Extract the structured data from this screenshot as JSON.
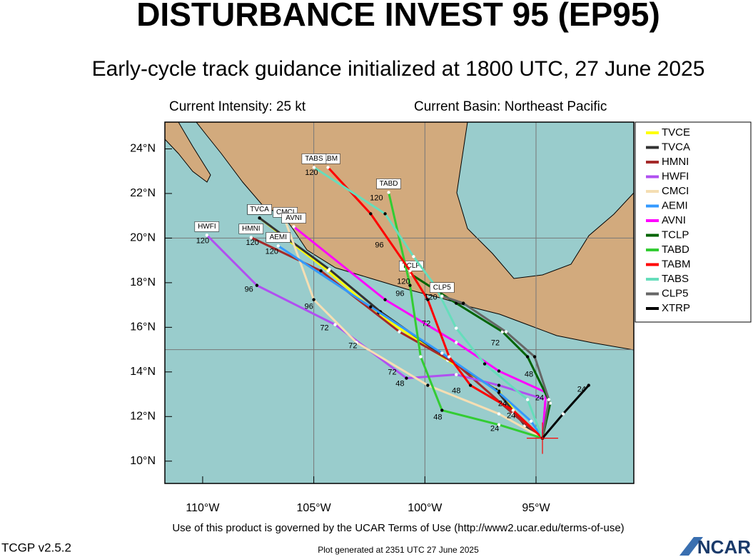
{
  "header": {
    "title": "DISTURBANCE INVEST 95 (EP95)",
    "subtitle": "Early-cycle track guidance initialized at 1800 UTC, 27 June 2025",
    "intensity": "Current Intensity: 25 kt",
    "basin": "Current Basin: Northeast Pacific"
  },
  "map": {
    "xlim": [
      -111.7,
      -90.6
    ],
    "ylim": [
      9.0,
      25.2
    ],
    "xticks": [
      {
        "value": -110,
        "label": "110°W"
      },
      {
        "value": -105,
        "label": "105°W"
      },
      {
        "value": -100,
        "label": "100°W"
      },
      {
        "value": -95,
        "label": "95°W"
      }
    ],
    "yticks": [
      {
        "value": 10,
        "label": "10°N"
      },
      {
        "value": 12,
        "label": "12°N"
      },
      {
        "value": 14,
        "label": "14°N"
      },
      {
        "value": 16,
        "label": "16°N"
      },
      {
        "value": 18,
        "label": "18°N"
      },
      {
        "value": 20,
        "label": "20°N"
      },
      {
        "value": 22,
        "label": "22°N"
      },
      {
        "value": 24,
        "label": "24°N"
      }
    ],
    "grid_lon": [
      -105,
      -100,
      -95
    ],
    "grid_lat": [
      15,
      20
    ],
    "current_position": {
      "lon": -94.71,
      "lat": 11.03
    },
    "tracks": [
      {
        "name": "TVCE",
        "color": "#ffff00",
        "lon": [
          -94.71,
          -95.38,
          -96.67,
          -98.97,
          -102.12,
          -104.36,
          -107.44
        ],
        "lat": [
          11.03,
          11.47,
          13.14,
          14.52,
          16.6,
          18.53,
          20.9
        ]
      },
      {
        "name": "TVCA",
        "color": "#333333",
        "lon": [
          -94.71,
          -95.5,
          -96.8,
          -99.0,
          -102.0,
          -104.3,
          -107.44
        ],
        "lat": [
          11.03,
          11.6,
          13.2,
          14.6,
          16.7,
          18.6,
          20.9
        ]
      },
      {
        "name": "HMNI",
        "color": "#a52a2a",
        "lon": [
          -94.71,
          -96.03,
          -98.59,
          -101.15,
          -104.68,
          -107.82
        ],
        "lat": [
          11.03,
          12.12,
          14.36,
          15.8,
          18.53,
          20.03
        ]
      },
      {
        "name": "HWFI",
        "color": "#b050f0",
        "lon": [
          -94.71,
          -94.58,
          -96.67,
          -98.59,
          -100.83,
          -104.04,
          -107.56,
          -109.81
        ],
        "lat": [
          11.03,
          12.76,
          13.4,
          13.88,
          13.72,
          16.12,
          17.88,
          20.13
        ]
      },
      {
        "name": "CMCI",
        "color": "#f5deb3",
        "lon": [
          -94.71,
          -96.67,
          -99.87,
          -103.08,
          -105.0,
          -106.28
        ],
        "lat": [
          11.03,
          12.12,
          13.4,
          15.32,
          17.24,
          20.77
        ]
      },
      {
        "name": "AEMI",
        "color": "#3399ff",
        "lon": [
          -94.71,
          -95.22,
          -96.67,
          -99.23,
          -102.44,
          -106.6
        ],
        "lat": [
          11.03,
          11.79,
          13.08,
          14.84,
          16.92,
          19.65
        ]
      },
      {
        "name": "AVNI",
        "color": "#ff00ff",
        "lon": [
          -94.71,
          -94.55,
          -96.67,
          -98.59,
          -101.79,
          -105.9
        ],
        "lat": [
          11.03,
          13.08,
          14.04,
          15.32,
          17.24,
          20.51
        ]
      },
      {
        "name": "TCLP",
        "color": "#006400",
        "lon": [
          -94.71,
          -94.36,
          -95.38,
          -96.51,
          -98.59,
          -100.61
        ],
        "lat": [
          11.03,
          12.6,
          14.68,
          15.8,
          17.08,
          18.37
        ]
      },
      {
        "name": "TABD",
        "color": "#33cc33",
        "lon": [
          -94.71,
          -96.67,
          -99.23,
          -100.19,
          -100.67,
          -101.63
        ],
        "lat": [
          11.03,
          11.63,
          12.28,
          14.68,
          17.88,
          22.05
        ]
      },
      {
        "name": "TABM",
        "color": "#ff0000",
        "lon": [
          -94.71,
          -96.03,
          -97.95,
          -98.91,
          -99.87,
          -100.67,
          -102.44,
          -104.36
        ],
        "lat": [
          11.03,
          12.28,
          13.4,
          14.68,
          17.24,
          18.53,
          21.09,
          23.17
        ]
      },
      {
        "name": "TABS",
        "color": "#66ddbb",
        "lon": [
          -94.71,
          -95.38,
          -97.31,
          -98.59,
          -99.55,
          -100.51,
          -101.79,
          -104.99
        ],
        "lat": [
          11.03,
          12.76,
          14.36,
          15.96,
          17.88,
          19.17,
          21.09,
          23.17
        ]
      },
      {
        "name": "CLP5",
        "color": "#666666",
        "lon": [
          -94.71,
          -94.42,
          -95.06,
          -96.35,
          -98.27,
          -99.23
        ],
        "lat": [
          11.03,
          12.76,
          14.68,
          15.8,
          17.08,
          17.4
        ]
      },
      {
        "name": "XTRP",
        "color": "#000000",
        "lon": [
          -94.71,
          -93.78,
          -92.63
        ],
        "lat": [
          11.03,
          12.12,
          13.4
        ]
      }
    ],
    "hour_labels": [
      {
        "text": "120",
        "lon": -105.1,
        "lat": 22.92
      },
      {
        "text": "120",
        "lon": -102.18,
        "lat": 21.79
      },
      {
        "text": "120",
        "lon": -107.76,
        "lat": 19.78
      },
      {
        "text": "120",
        "lon": -106.89,
        "lat": 19.39
      },
      {
        "text": "120",
        "lon": -110.0,
        "lat": 19.87
      },
      {
        "text": "120",
        "lon": -100.96,
        "lat": 18.04
      },
      {
        "text": "120",
        "lon": -99.74,
        "lat": 17.34
      },
      {
        "text": "96",
        "lon": -107.92,
        "lat": 17.69
      },
      {
        "text": "96",
        "lon": -105.22,
        "lat": 16.92
      },
      {
        "text": "96",
        "lon": -101.12,
        "lat": 17.5
      },
      {
        "text": "96",
        "lon": -102.05,
        "lat": 19.68
      },
      {
        "text": "72",
        "lon": -104.52,
        "lat": 15.96
      },
      {
        "text": "72",
        "lon": -103.24,
        "lat": 15.16
      },
      {
        "text": "72",
        "lon": -101.47,
        "lat": 13.97
      },
      {
        "text": "72",
        "lon": -99.94,
        "lat": 16.15
      },
      {
        "text": "72",
        "lon": -96.83,
        "lat": 15.29
      },
      {
        "text": "48",
        "lon": -101.12,
        "lat": 13.46
      },
      {
        "text": "48",
        "lon": -99.42,
        "lat": 11.96
      },
      {
        "text": "48",
        "lon": -98.59,
        "lat": 13.14
      },
      {
        "text": "48",
        "lon": -95.32,
        "lat": 13.88
      },
      {
        "text": "24",
        "lon": -96.86,
        "lat": 11.44
      },
      {
        "text": "24",
        "lon": -96.51,
        "lat": 12.56
      },
      {
        "text": "24",
        "lon": -94.84,
        "lat": 12.82
      },
      {
        "text": "24",
        "lon": -92.95,
        "lat": 13.21
      },
      {
        "text": "24",
        "lon": -96.12,
        "lat": 12.02
      }
    ]
  },
  "footer": {
    "terms": "Use of this product is governed by the UCAR Terms of Use (http://www2.ucar.edu/terms-of-use)",
    "version": "TCGP v2.5.2",
    "generated": "Plot generated at 2351 UTC   27 June 2025",
    "logo": "NCAR"
  }
}
